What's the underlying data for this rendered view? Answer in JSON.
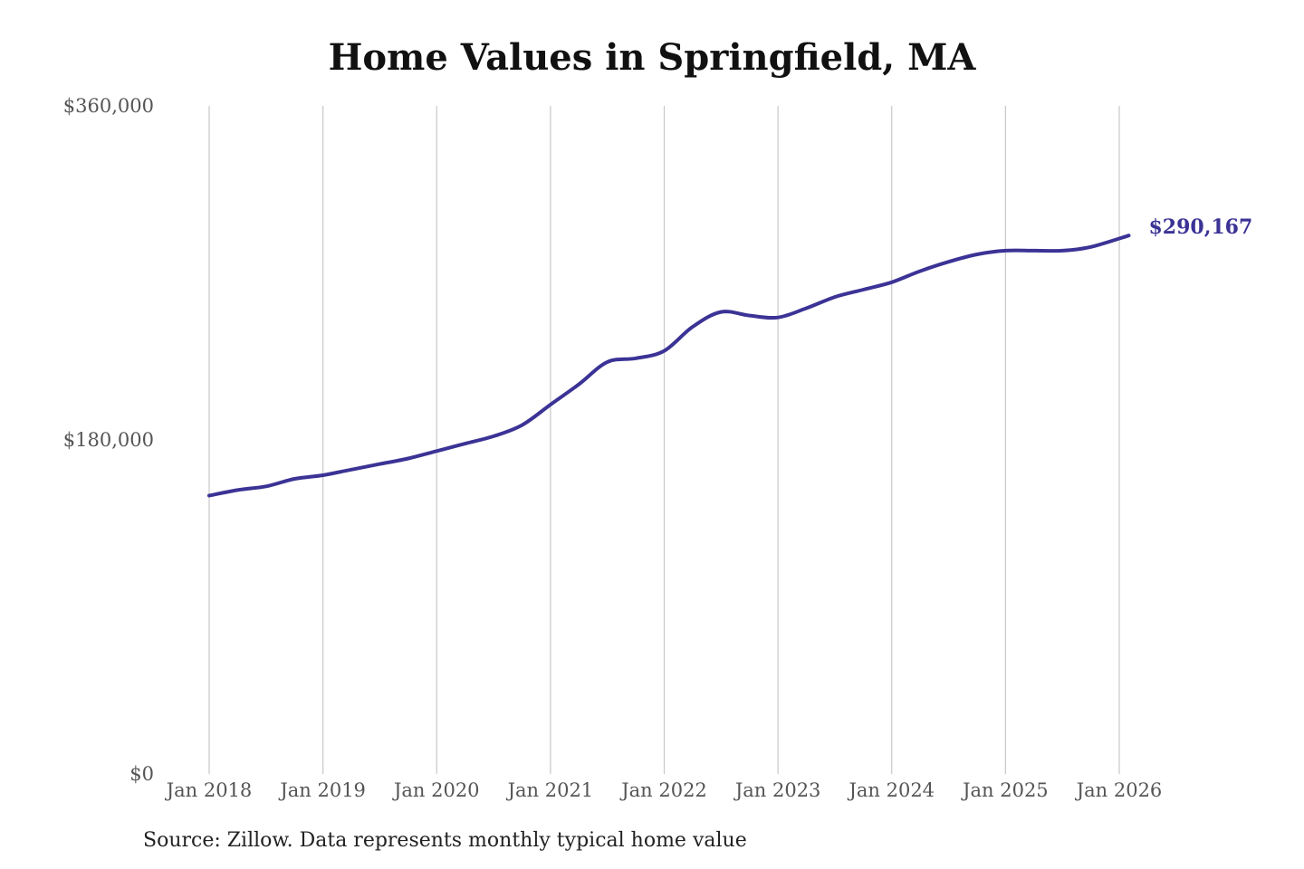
{
  "chart_data": {
    "type": "line",
    "title": "Home Values in Springfield, MA",
    "xlabel": "",
    "ylabel": "",
    "ylim": [
      0,
      360000
    ],
    "y_ticks": [
      0,
      180000,
      360000
    ],
    "y_tick_labels": [
      "$0",
      "$180,000",
      "$360,000"
    ],
    "x_tick_labels": [
      "Jan 2018",
      "Jan 2019",
      "Jan 2020",
      "Jan 2021",
      "Jan 2022",
      "Jan 2023",
      "Jan 2024",
      "Jan 2025",
      "Jan 2026"
    ],
    "grid": "vertical",
    "series": [
      {
        "color": "#3b3395",
        "points": [
          [
            "Jan 2018",
            150000
          ],
          [
            "Apr 2018",
            153000
          ],
          [
            "Jul 2018",
            155000
          ],
          [
            "Oct 2018",
            159000
          ],
          [
            "Jan 2019",
            161000
          ],
          [
            "Apr 2019",
            164000
          ],
          [
            "Jul 2019",
            167000
          ],
          [
            "Oct 2019",
            170000
          ],
          [
            "Jan 2020",
            174000
          ],
          [
            "Apr 2020",
            178000
          ],
          [
            "Jul 2020",
            182000
          ],
          [
            "Oct 2020",
            188000
          ],
          [
            "Jan 2021",
            199000
          ],
          [
            "Apr 2021",
            210000
          ],
          [
            "Jul 2021",
            222000
          ],
          [
            "Oct 2021",
            224000
          ],
          [
            "Jan 2022",
            228000
          ],
          [
            "Apr 2022",
            241000
          ],
          [
            "Jul 2022",
            249000
          ],
          [
            "Oct 2022",
            247000
          ],
          [
            "Jan 2023",
            246000
          ],
          [
            "Apr 2023",
            251000
          ],
          [
            "Jul 2023",
            257000
          ],
          [
            "Oct 2023",
            261000
          ],
          [
            "Jan 2024",
            265000
          ],
          [
            "Apr 2024",
            271000
          ],
          [
            "Jul 2024",
            276000
          ],
          [
            "Oct 2024",
            280000
          ],
          [
            "Jan 2025",
            282000
          ],
          [
            "Apr 2025",
            282000
          ],
          [
            "Jul 2025",
            282000
          ],
          [
            "Oct 2025",
            284000
          ],
          [
            "Feb 2026",
            290167
          ]
        ]
      }
    ],
    "end_label": "$290,167"
  },
  "footer": {
    "source": "Source: Zillow. Data represents monthly typical home value"
  },
  "colors": {
    "line": "#3b3395",
    "grid": "#c8c8c8",
    "axis_text": "#555555",
    "title": "#111111"
  }
}
